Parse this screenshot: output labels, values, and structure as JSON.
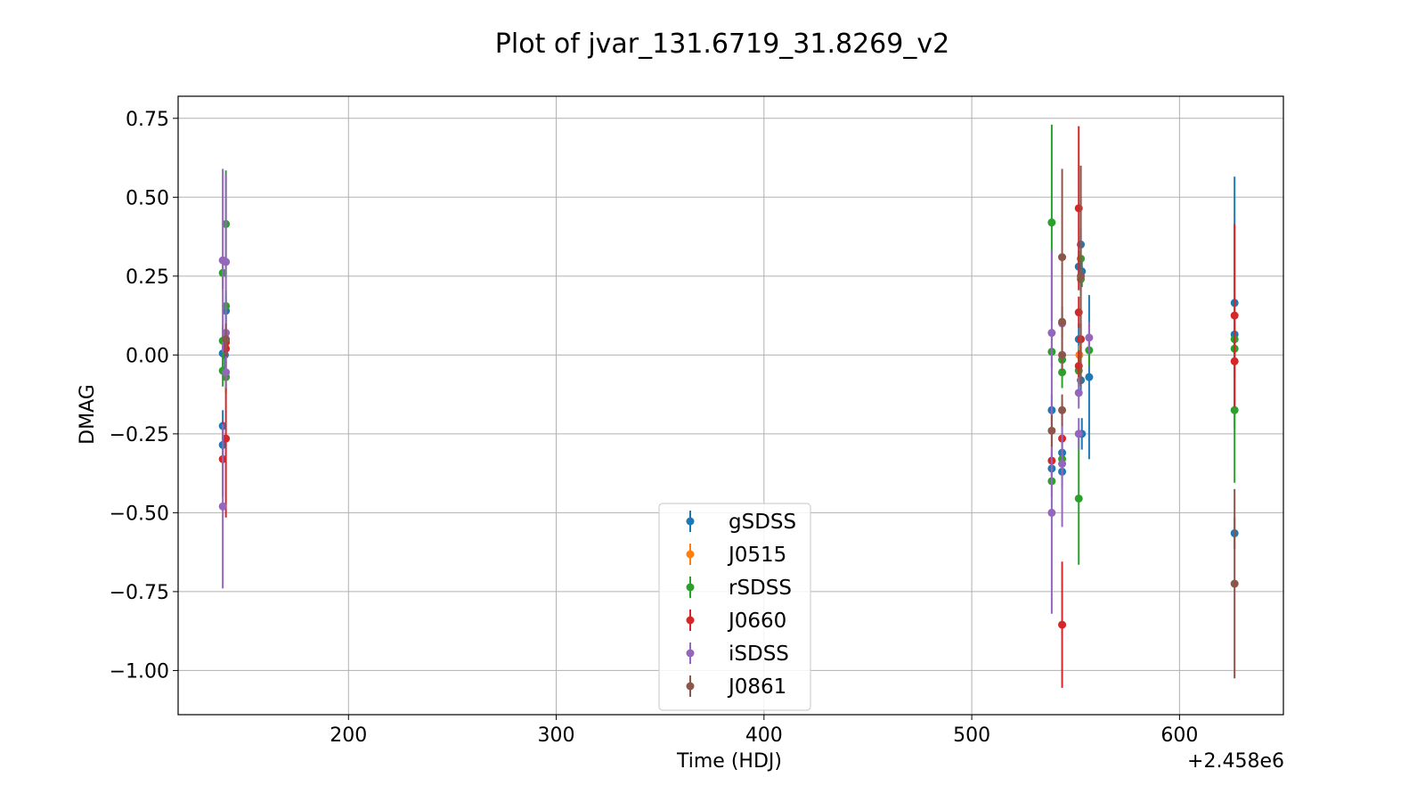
{
  "chart_data": {
    "type": "scatter",
    "title": "Plot of jvar_131.6719_31.8269_v2",
    "xlabel": "Time (HDJ)",
    "ylabel": "DMAG",
    "x_offset_label": "+2.458e6",
    "xlim": [
      2458118,
      2458650
    ],
    "ylim": [
      -1.14,
      0.82
    ],
    "xticks": [
      2458200,
      2458300,
      2458400,
      2458500,
      2458600
    ],
    "xtick_labels": [
      "200",
      "300",
      "400",
      "500",
      "600"
    ],
    "yticks": [
      0.75,
      0.5,
      0.25,
      0.0,
      -0.25,
      -0.5,
      -0.75,
      -1.0
    ],
    "ytick_labels": [
      "0.75",
      "0.50",
      "0.25",
      "0.00",
      "−0.25",
      "−0.50",
      "−0.75",
      "−1.00"
    ],
    "grid": true,
    "legend_position": "lower-center",
    "series": [
      {
        "name": "gSDSS",
        "color": "#1f77b4",
        "points": [
          {
            "x": 2458139.5,
            "y": 0.005,
            "err": 0.06
          },
          {
            "x": 2458140.5,
            "y": 0.0,
            "err": 0.05
          },
          {
            "x": 2458141.0,
            "y": 0.14,
            "err": 0.05
          },
          {
            "x": 2458139.5,
            "y": -0.225,
            "err": 0.05
          },
          {
            "x": 2458139.5,
            "y": -0.285,
            "err": 0.05
          },
          {
            "x": 2458538.5,
            "y": -0.175,
            "err": 0.05
          },
          {
            "x": 2458538.5,
            "y": -0.36,
            "err": 0.05
          },
          {
            "x": 2458543.5,
            "y": -0.31,
            "err": 0.05
          },
          {
            "x": 2458543.5,
            "y": -0.37,
            "err": 0.05
          },
          {
            "x": 2458551.5,
            "y": 0.28,
            "err": 0.05
          },
          {
            "x": 2458552.5,
            "y": 0.35,
            "err": 0.05
          },
          {
            "x": 2458553.0,
            "y": 0.265,
            "err": 0.05
          },
          {
            "x": 2458551.5,
            "y": 0.05,
            "err": 0.05
          },
          {
            "x": 2458552.5,
            "y": -0.08,
            "err": 0.05
          },
          {
            "x": 2458553.0,
            "y": -0.25,
            "err": 0.05
          },
          {
            "x": 2458556.5,
            "y": -0.07,
            "err": 0.26
          },
          {
            "x": 2458626.5,
            "y": 0.165,
            "err": 0.4
          },
          {
            "x": 2458626.5,
            "y": 0.065,
            "err": 0.05
          },
          {
            "x": 2458626.5,
            "y": -0.565,
            "err": 0.05
          }
        ]
      },
      {
        "name": "J0515",
        "color": "#ff7f0e",
        "points": [
          {
            "x": 2458551.8,
            "y": 0.0,
            "err": 0.03
          }
        ]
      },
      {
        "name": "rSDSS",
        "color": "#2ca02c",
        "points": [
          {
            "x": 2458139.5,
            "y": 0.26,
            "err": 0.05
          },
          {
            "x": 2458141.0,
            "y": 0.415,
            "err": 0.17
          },
          {
            "x": 2458141.0,
            "y": 0.155,
            "err": 0.05
          },
          {
            "x": 2458139.5,
            "y": 0.045,
            "err": 0.05
          },
          {
            "x": 2458139.5,
            "y": -0.05,
            "err": 0.05
          },
          {
            "x": 2458141.0,
            "y": -0.07,
            "err": 0.05
          },
          {
            "x": 2458538.5,
            "y": 0.42,
            "err": 0.31
          },
          {
            "x": 2458538.5,
            "y": 0.01,
            "err": 0.05
          },
          {
            "x": 2458538.5,
            "y": -0.4,
            "err": 0.05
          },
          {
            "x": 2458543.5,
            "y": -0.015,
            "err": 0.05
          },
          {
            "x": 2458543.5,
            "y": -0.055,
            "err": 0.05
          },
          {
            "x": 2458543.5,
            "y": -0.33,
            "err": 0.05
          },
          {
            "x": 2458551.5,
            "y": -0.455,
            "err": 0.21
          },
          {
            "x": 2458551.5,
            "y": -0.05,
            "err": 0.05
          },
          {
            "x": 2458552.5,
            "y": 0.305,
            "err": 0.05
          },
          {
            "x": 2458552.5,
            "y": 0.24,
            "err": 0.05
          },
          {
            "x": 2458556.5,
            "y": 0.015,
            "err": 0.05
          },
          {
            "x": 2458626.5,
            "y": 0.05,
            "err": 0.05
          },
          {
            "x": 2458626.5,
            "y": 0.02,
            "err": 0.05
          },
          {
            "x": 2458626.5,
            "y": -0.175,
            "err": 0.23
          }
        ]
      },
      {
        "name": "J0660",
        "color": "#d62728",
        "points": [
          {
            "x": 2458139.5,
            "y": -0.33,
            "err": 0.12
          },
          {
            "x": 2458141.0,
            "y": -0.265,
            "err": 0.25
          },
          {
            "x": 2458141.0,
            "y": 0.02,
            "err": 0.05
          },
          {
            "x": 2458141.0,
            "y": 0.04,
            "err": 0.05
          },
          {
            "x": 2458538.5,
            "y": -0.335,
            "err": 0.05
          },
          {
            "x": 2458543.5,
            "y": -0.855,
            "err": 0.2
          },
          {
            "x": 2458543.5,
            "y": -0.265,
            "err": 0.05
          },
          {
            "x": 2458551.5,
            "y": 0.465,
            "err": 0.26
          },
          {
            "x": 2458551.5,
            "y": 0.135,
            "err": 0.05
          },
          {
            "x": 2458551.5,
            "y": -0.035,
            "err": 0.05
          },
          {
            "x": 2458552.5,
            "y": 0.05,
            "err": 0.05
          },
          {
            "x": 2458626.5,
            "y": 0.125,
            "err": 0.29
          },
          {
            "x": 2458626.5,
            "y": -0.02,
            "err": 0.05
          }
        ]
      },
      {
        "name": "iSDSS",
        "color": "#9467bd",
        "points": [
          {
            "x": 2458139.5,
            "y": 0.3,
            "err": 0.29
          },
          {
            "x": 2458141.0,
            "y": 0.295,
            "err": 0.28
          },
          {
            "x": 2458141.0,
            "y": 0.07,
            "err": 0.05
          },
          {
            "x": 2458141.0,
            "y": -0.055,
            "err": 0.05
          },
          {
            "x": 2458139.5,
            "y": -0.48,
            "err": 0.26
          },
          {
            "x": 2458538.5,
            "y": 0.07,
            "err": 0.26
          },
          {
            "x": 2458538.5,
            "y": -0.5,
            "err": 0.32
          },
          {
            "x": 2458543.5,
            "y": 0.1,
            "err": 0.05
          },
          {
            "x": 2458543.5,
            "y": -0.345,
            "err": 0.2
          },
          {
            "x": 2458551.5,
            "y": -0.12,
            "err": 0.05
          },
          {
            "x": 2458551.5,
            "y": -0.25,
            "err": 0.05
          },
          {
            "x": 2458556.5,
            "y": 0.055,
            "err": 0.05
          }
        ]
      },
      {
        "name": "J0861",
        "color": "#8c564b",
        "points": [
          {
            "x": 2458141.0,
            "y": 0.05,
            "err": 0.05
          },
          {
            "x": 2458538.5,
            "y": -0.24,
            "err": 0.05
          },
          {
            "x": 2458543.5,
            "y": 0.31,
            "err": 0.28
          },
          {
            "x": 2458543.5,
            "y": 0.105,
            "err": 0.05
          },
          {
            "x": 2458543.5,
            "y": 0.0,
            "err": 0.05
          },
          {
            "x": 2458543.5,
            "y": -0.175,
            "err": 0.05
          },
          {
            "x": 2458552.5,
            "y": 0.25,
            "err": 0.35
          },
          {
            "x": 2458626.5,
            "y": -0.725,
            "err": 0.3
          }
        ]
      }
    ]
  }
}
